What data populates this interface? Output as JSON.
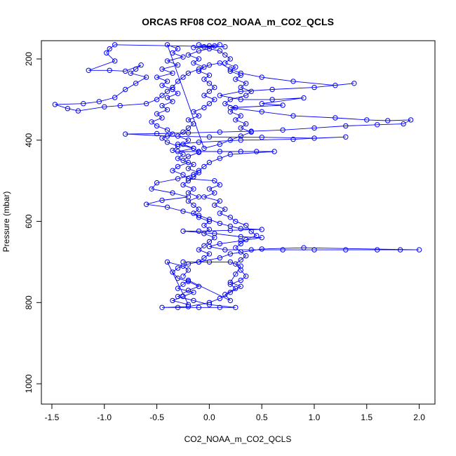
{
  "chart_data": {
    "type": "scatter",
    "title": "ORCAS RF08 CO2_NOAA_m_CO2_QCLS",
    "xlabel": "CO2_NOAA_m_CO2_QCLS",
    "ylabel": "Pressure (mbar)",
    "xlim": [
      -1.6,
      2.15
    ],
    "ylim": [
      1050,
      155
    ],
    "y_reversed": true,
    "grid": false,
    "legend": "none",
    "marker": "open-circle",
    "connected": true,
    "color": "#0000ff",
    "x_ticks": [
      -1.5,
      -1.0,
      -0.5,
      0.0,
      0.5,
      1.0,
      1.5,
      2.0
    ],
    "x_tick_labels": [
      "-1.5",
      "-1.0",
      "-0.5",
      "0.0",
      "0.5",
      "1.0",
      "1.5",
      "2.0"
    ],
    "y_ticks": [
      200,
      400,
      600,
      800,
      1000
    ],
    "y_tick_labels": [
      "200",
      "400",
      "600",
      "800",
      "1000"
    ],
    "series": [
      {
        "values_note_free": true,
        "points": [
          [
            -0.1,
            165
          ],
          [
            0.0,
            168
          ],
          [
            0.1,
            165
          ],
          [
            -0.05,
            170
          ],
          [
            0.05,
            168
          ],
          [
            -0.15,
            172
          ],
          [
            0.15,
            170
          ],
          [
            -0.9,
            165
          ],
          [
            -0.95,
            175
          ],
          [
            -0.98,
            185
          ],
          [
            -0.9,
            205
          ],
          [
            -1.15,
            228
          ],
          [
            -0.95,
            228
          ],
          [
            -0.8,
            230
          ],
          [
            -0.65,
            215
          ],
          [
            -0.7,
            225
          ],
          [
            -0.75,
            235
          ],
          [
            -0.6,
            245
          ],
          [
            -0.7,
            260
          ],
          [
            -0.8,
            275
          ],
          [
            -0.9,
            295
          ],
          [
            -1.05,
            305
          ],
          [
            -1.2,
            310
          ],
          [
            -1.47,
            312
          ],
          [
            -1.35,
            322
          ],
          [
            -1.25,
            328
          ],
          [
            -1.0,
            318
          ],
          [
            -0.85,
            315
          ],
          [
            -0.6,
            310
          ],
          [
            -0.5,
            300
          ],
          [
            -0.45,
            290
          ],
          [
            -0.4,
            280
          ],
          [
            -0.35,
            270
          ],
          [
            -0.3,
            255
          ],
          [
            -0.25,
            245
          ],
          [
            -0.2,
            235
          ],
          [
            -0.1,
            225
          ],
          [
            0.0,
            215
          ],
          [
            0.1,
            210
          ],
          [
            0.2,
            225
          ],
          [
            0.3,
            235
          ],
          [
            0.5,
            245
          ],
          [
            0.8,
            255
          ],
          [
            1.2,
            265
          ],
          [
            1.38,
            260
          ],
          [
            1.0,
            270
          ],
          [
            0.6,
            275
          ],
          [
            0.3,
            280
          ],
          [
            0.1,
            290
          ],
          [
            0.3,
            300
          ],
          [
            0.6,
            300
          ],
          [
            0.9,
            296
          ],
          [
            0.5,
            310
          ],
          [
            0.7,
            314
          ],
          [
            0.2,
            320
          ],
          [
            0.5,
            330
          ],
          [
            0.8,
            340
          ],
          [
            1.2,
            345
          ],
          [
            1.5,
            350
          ],
          [
            1.7,
            352
          ],
          [
            1.92,
            350
          ],
          [
            1.85,
            360
          ],
          [
            1.6,
            362
          ],
          [
            1.3,
            365
          ],
          [
            1.0,
            370
          ],
          [
            0.7,
            375
          ],
          [
            0.4,
            378
          ],
          [
            0.1,
            380
          ],
          [
            -0.2,
            382
          ],
          [
            -0.5,
            384
          ],
          [
            -0.8,
            385
          ],
          [
            -0.4,
            390
          ],
          [
            0.0,
            392
          ],
          [
            0.5,
            393
          ],
          [
            1.0,
            395
          ],
          [
            1.3,
            392
          ],
          [
            0.8,
            398
          ],
          [
            0.3,
            400
          ],
          [
            -0.1,
            405
          ],
          [
            -0.3,
            410
          ],
          [
            -0.15,
            420
          ],
          [
            -0.3,
            428
          ],
          [
            -0.1,
            428
          ],
          [
            0.1,
            428
          ],
          [
            0.3,
            428
          ],
          [
            0.45,
            428
          ],
          [
            0.62,
            428
          ],
          [
            0.2,
            435
          ],
          [
            0.1,
            445
          ],
          [
            0.0,
            455
          ],
          [
            -0.05,
            465
          ],
          [
            -0.1,
            475
          ],
          [
            -0.15,
            485
          ],
          [
            -0.3,
            495
          ],
          [
            -0.5,
            505
          ],
          [
            -0.55,
            520
          ],
          [
            -0.35,
            530
          ],
          [
            -0.2,
            540
          ],
          [
            -0.45,
            548
          ],
          [
            -0.6,
            558
          ],
          [
            -0.4,
            565
          ],
          [
            -0.25,
            575
          ],
          [
            -0.1,
            585
          ],
          [
            0.0,
            595
          ],
          [
            0.1,
            605
          ],
          [
            0.2,
            612
          ],
          [
            0.3,
            618
          ],
          [
            0.5,
            620
          ],
          [
            0.2,
            622
          ],
          [
            -0.1,
            624
          ],
          [
            -0.25,
            624
          ],
          [
            0.05,
            630
          ],
          [
            0.3,
            638
          ],
          [
            0.5,
            640
          ],
          [
            0.3,
            648
          ],
          [
            0.1,
            655
          ],
          [
            0.0,
            662
          ],
          [
            0.15,
            670
          ],
          [
            0.4,
            670
          ],
          [
            0.7,
            670
          ],
          [
            1.0,
            670
          ],
          [
            1.3,
            670
          ],
          [
            1.6,
            670
          ],
          [
            1.82,
            670
          ],
          [
            2.0,
            670
          ],
          [
            0.9,
            665
          ],
          [
            0.5,
            668
          ],
          [
            0.2,
            680
          ],
          [
            0.1,
            690
          ],
          [
            -0.1,
            700
          ],
          [
            -0.25,
            700
          ],
          [
            0.0,
            700
          ],
          [
            0.2,
            700
          ],
          [
            0.3,
            710
          ],
          [
            0.25,
            730
          ],
          [
            0.2,
            750
          ],
          [
            0.3,
            760
          ],
          [
            0.2,
            775
          ],
          [
            0.1,
            790
          ],
          [
            0.0,
            800
          ],
          [
            -0.2,
            810
          ],
          [
            -0.45,
            812
          ],
          [
            -0.3,
            812
          ],
          [
            -0.1,
            812
          ],
          [
            0.1,
            812
          ],
          [
            0.25,
            812
          ],
          [
            0.0,
            805
          ],
          [
            -0.15,
            795
          ],
          [
            -0.3,
            785
          ],
          [
            -0.2,
            770
          ],
          [
            -0.1,
            760
          ],
          [
            -0.2,
            748
          ],
          [
            -0.3,
            740
          ],
          [
            -0.35,
            725
          ],
          [
            -0.3,
            715
          ],
          [
            -0.2,
            705
          ],
          [
            -0.1,
            700
          ],
          [
            -0.05,
            690
          ],
          [
            0.0,
            680
          ],
          [
            -0.1,
            670
          ],
          [
            -0.05,
            660
          ],
          [
            0.0,
            650
          ],
          [
            0.05,
            640
          ],
          [
            -0.05,
            630
          ],
          [
            0.0,
            620
          ],
          [
            -0.05,
            610
          ],
          [
            0.0,
            600
          ],
          [
            -0.1,
            590
          ],
          [
            -0.15,
            580
          ],
          [
            -0.1,
            570
          ],
          [
            -0.15,
            560
          ],
          [
            -0.2,
            550
          ],
          [
            -0.1,
            540
          ],
          [
            -0.2,
            530
          ],
          [
            -0.15,
            520
          ],
          [
            -0.25,
            510
          ],
          [
            -0.2,
            500
          ],
          [
            -0.15,
            490
          ],
          [
            -0.1,
            480
          ],
          [
            -0.2,
            470
          ],
          [
            -0.15,
            460
          ],
          [
            -0.25,
            450
          ],
          [
            -0.2,
            440
          ],
          [
            -0.1,
            430
          ],
          [
            -0.15,
            420
          ],
          [
            -0.25,
            410
          ],
          [
            -0.2,
            400
          ],
          [
            -0.3,
            390
          ],
          [
            -0.25,
            380
          ],
          [
            -0.2,
            370
          ],
          [
            -0.15,
            360
          ],
          [
            -0.2,
            350
          ],
          [
            -0.1,
            340
          ],
          [
            -0.15,
            330
          ],
          [
            -0.05,
            320
          ],
          [
            0.0,
            310
          ],
          [
            0.05,
            300
          ],
          [
            -0.05,
            290
          ],
          [
            0.0,
            280
          ],
          [
            0.05,
            270
          ],
          [
            0.0,
            260
          ],
          [
            -0.05,
            250
          ],
          [
            0.0,
            240
          ],
          [
            -0.1,
            230
          ],
          [
            -0.05,
            220
          ],
          [
            -0.15,
            210
          ],
          [
            -0.1,
            200
          ],
          [
            -0.2,
            190
          ],
          [
            -0.1,
            180
          ],
          [
            0.0,
            175
          ],
          [
            0.1,
            180
          ],
          [
            0.15,
            190
          ],
          [
            0.2,
            200
          ],
          [
            0.15,
            210
          ],
          [
            0.25,
            220
          ],
          [
            0.2,
            230
          ],
          [
            0.3,
            240
          ],
          [
            0.25,
            250
          ],
          [
            0.35,
            260
          ],
          [
            0.3,
            270
          ],
          [
            0.4,
            280
          ],
          [
            0.35,
            290
          ],
          [
            0.2,
            300
          ],
          [
            0.15,
            310
          ],
          [
            0.25,
            320
          ],
          [
            0.2,
            330
          ],
          [
            0.3,
            340
          ],
          [
            0.25,
            350
          ],
          [
            0.35,
            360
          ],
          [
            0.3,
            370
          ],
          [
            0.4,
            380
          ],
          [
            0.3,
            390
          ],
          [
            0.2,
            400
          ],
          [
            0.1,
            410
          ],
          [
            -0.05,
            420
          ],
          [
            -0.4,
            165
          ],
          [
            -0.3,
            175
          ],
          [
            -0.35,
            185
          ],
          [
            -0.25,
            195
          ],
          [
            -0.4,
            205
          ],
          [
            -0.3,
            215
          ],
          [
            -0.45,
            225
          ],
          [
            -0.35,
            235
          ],
          [
            -0.5,
            245
          ],
          [
            -0.4,
            255
          ],
          [
            -0.45,
            265
          ],
          [
            -0.35,
            275
          ],
          [
            -0.3,
            285
          ],
          [
            -0.4,
            295
          ],
          [
            -0.35,
            305
          ],
          [
            -0.45,
            315
          ],
          [
            -0.4,
            325
          ],
          [
            -0.5,
            335
          ],
          [
            -0.45,
            345
          ],
          [
            -0.55,
            355
          ],
          [
            -0.5,
            365
          ],
          [
            -0.4,
            375
          ],
          [
            -0.35,
            385
          ],
          [
            -0.45,
            395
          ],
          [
            -0.4,
            405
          ],
          [
            -0.3,
            415
          ],
          [
            -0.35,
            425
          ],
          [
            -0.25,
            435
          ],
          [
            -0.3,
            445
          ],
          [
            -0.2,
            455
          ],
          [
            -0.3,
            465
          ],
          [
            -0.35,
            475
          ],
          [
            -0.25,
            485
          ],
          [
            -0.2,
            495
          ],
          [
            0.05,
            500
          ],
          [
            0.1,
            510
          ],
          [
            0.0,
            520
          ],
          [
            0.05,
            530
          ],
          [
            -0.05,
            540
          ],
          [
            0.1,
            550
          ],
          [
            0.05,
            560
          ],
          [
            0.15,
            570
          ],
          [
            0.1,
            580
          ],
          [
            0.2,
            590
          ],
          [
            0.25,
            600
          ],
          [
            0.35,
            610
          ],
          [
            0.4,
            625
          ],
          [
            0.45,
            635
          ],
          [
            0.35,
            645
          ],
          [
            0.3,
            655
          ],
          [
            0.25,
            665
          ],
          [
            0.3,
            675
          ],
          [
            0.35,
            685
          ],
          [
            0.3,
            695
          ],
          [
            0.25,
            705
          ],
          [
            0.3,
            720
          ],
          [
            0.35,
            735
          ],
          [
            0.3,
            745
          ],
          [
            0.2,
            755
          ],
          [
            0.25,
            765
          ],
          [
            0.15,
            780
          ],
          [
            0.2,
            795
          ],
          [
            -0.2,
            745
          ],
          [
            -0.25,
            755
          ],
          [
            -0.3,
            765
          ],
          [
            -0.15,
            775
          ],
          [
            -0.25,
            785
          ],
          [
            -0.35,
            795
          ],
          [
            -0.2,
            805
          ],
          [
            -0.4,
            700
          ],
          [
            -0.25,
            710
          ],
          [
            -0.2,
            720
          ],
          [
            -0.25,
            735
          ]
        ]
      }
    ]
  }
}
